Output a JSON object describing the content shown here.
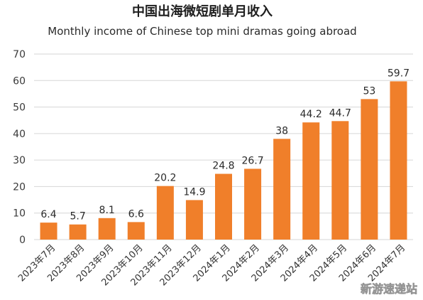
{
  "chart_data": {
    "type": "bar",
    "title": "中国出海微短剧单月收入",
    "subtitle": "Monthly income of Chinese top mini dramas going abroad",
    "categories": [
      "2023年7月",
      "2023年8月",
      "2023年9月",
      "2023年10月",
      "2023年11月",
      "2023年12月",
      "2024年1月",
      "2024年2月",
      "2024年3月",
      "2024年4月",
      "2024年5月",
      "2024年6月",
      "2024年7月"
    ],
    "values": [
      6.4,
      5.7,
      8.1,
      6.6,
      20.2,
      14.9,
      24.8,
      26.7,
      38,
      44.2,
      44.7,
      53,
      59.7
    ],
    "data_labels": [
      "6.4",
      "5.7",
      "8.1",
      "6.6",
      "20.2",
      "14.9",
      "24.8",
      "26.7",
      "38",
      "44.2",
      "44.7",
      "53",
      "59.7"
    ],
    "yticks": [
      "0",
      "10",
      "20",
      "30",
      "40",
      "50",
      "60",
      "70"
    ],
    "ylim": [
      0,
      70
    ],
    "xlabel": "",
    "ylabel": "",
    "grid": true,
    "bar_color": "#f07f2a"
  },
  "watermark": "新游速递站"
}
